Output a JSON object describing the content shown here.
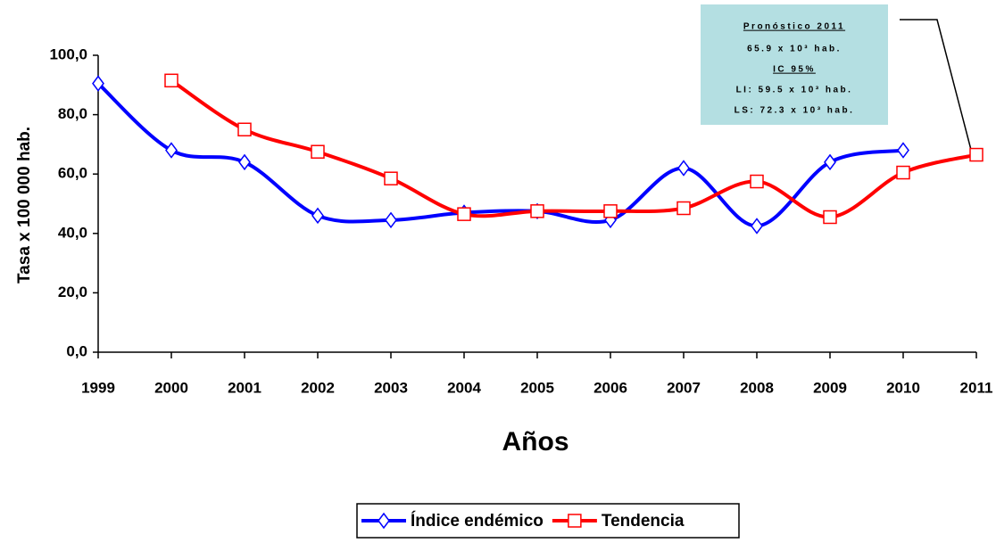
{
  "chart_data": {
    "type": "line",
    "x_label": "Años",
    "y_label": "Tasa x 100 000 hab.",
    "categories": [
      "1999",
      "2000",
      "2001",
      "2002",
      "2003",
      "2004",
      "2005",
      "2006",
      "2007",
      "2008",
      "2009",
      "2010",
      "2011"
    ],
    "series": [
      {
        "name": "Índice endémico",
        "color": "#0000ff",
        "marker": "diamond",
        "values": [
          90.5,
          68,
          64,
          46,
          44.5,
          47,
          47.5,
          44.5,
          62,
          42.5,
          64,
          68,
          null
        ]
      },
      {
        "name": "Tendencia",
        "color": "#ff0000",
        "marker": "square",
        "values": [
          null,
          91.5,
          75,
          67.5,
          58.5,
          46.5,
          47.5,
          47.5,
          48.5,
          57.5,
          45.5,
          60.5,
          66.5
        ]
      }
    ],
    "ylim": [
      0,
      100
    ],
    "yticks": [
      {
        "value": 0,
        "label": "0,0"
      },
      {
        "value": 20,
        "label": "20,0"
      },
      {
        "value": 40,
        "label": "40,0"
      },
      {
        "value": 60,
        "label": "60,0"
      },
      {
        "value": 80,
        "label": "80,0"
      },
      {
        "value": 100,
        "label": "100,0"
      }
    ],
    "grid": false,
    "legend": "bottom",
    "annotation": {
      "title": "Pronóstico 2011",
      "lines": [
        "65.9 x 10³ hab.",
        "IC 95%",
        "LI: 59.5 x 10³ hab.",
        "LS: 72.3 x 10³ hab."
      ]
    }
  }
}
